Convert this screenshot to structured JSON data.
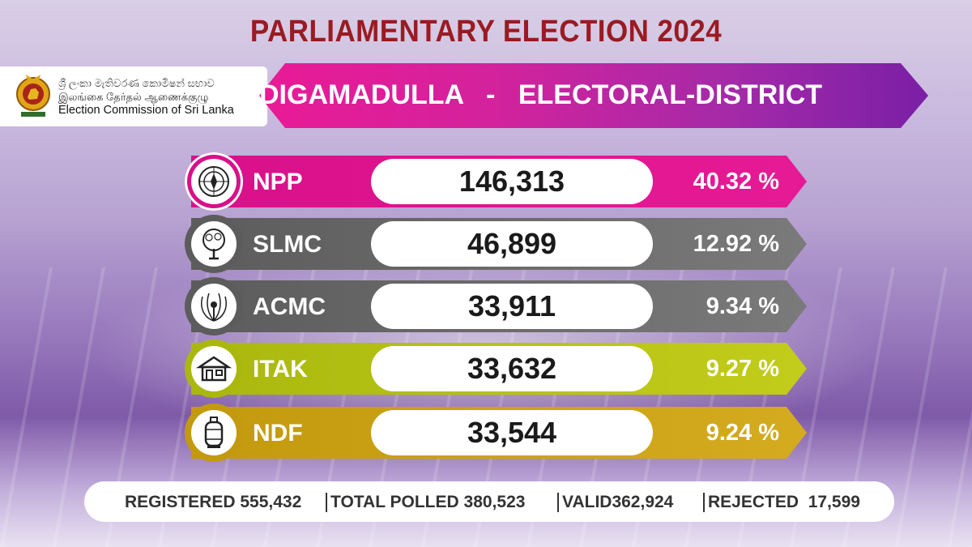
{
  "title": "PARLIAMENTARY ELECTION 2024",
  "logo": {
    "line_sinhala": "ශ්‍රී ලංකා මැතිවරණ කොමිෂන් සභාව",
    "line_tamil": "இலங்கை தேர்தல் ஆணைக்குழு",
    "line_english": "Election Commission of Sri Lanka",
    "icon": "national-emblem-icon"
  },
  "banner": {
    "district": "DIGAMADULLA",
    "separator": "-",
    "label": "ELECTORAL-DISTRICT"
  },
  "results": [
    {
      "party": "NPP",
      "votes": "146,313",
      "percent": "40.32 %",
      "icon": "compass-symbol-icon",
      "color": "#e0168f"
    },
    {
      "party": "SLMC",
      "votes": "46,899",
      "percent": "12.92 %",
      "icon": "tree-symbol-icon",
      "color": "#6e6e6e"
    },
    {
      "party": "ACMC",
      "votes": "33,911",
      "percent": "9.34 %",
      "icon": "peacock-symbol-icon",
      "color": "#6e6e6e"
    },
    {
      "party": "ITAK",
      "votes": "33,632",
      "percent": "9.27 %",
      "icon": "house-symbol-icon",
      "color": "#b8c212"
    },
    {
      "party": "NDF",
      "votes": "33,544",
      "percent": "9.24 %",
      "icon": "gas-cylinder-symbol-icon",
      "color": "#c9a012"
    }
  ],
  "stats": {
    "registered_label": "REGISTERED",
    "registered_value": "555,432",
    "polled_label": "TOTAL POLLED",
    "polled_value": "380,523",
    "valid_label": "VALID",
    "valid_value": "362,924",
    "rejected_label": "REJECTED",
    "rejected_value": "17,599"
  }
}
